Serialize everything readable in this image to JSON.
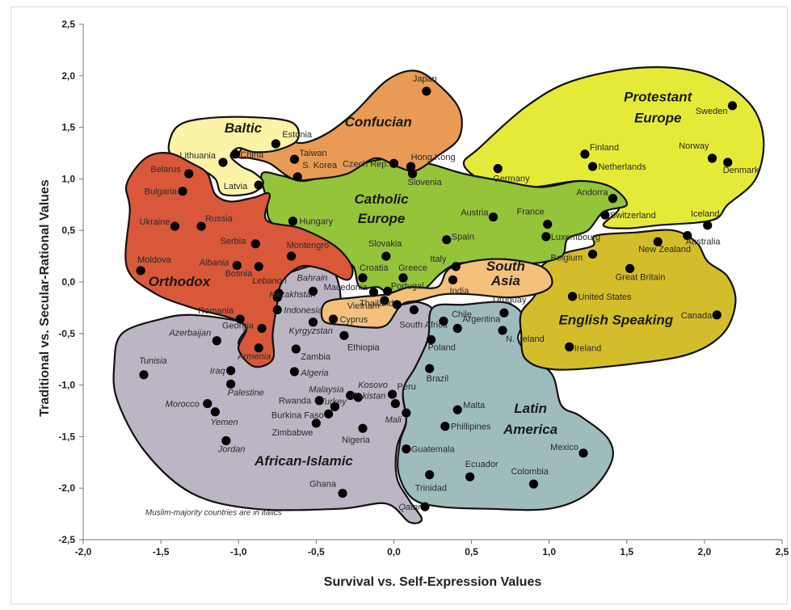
{
  "chart_data": {
    "type": "scatter",
    "xlabel": "Survival vs. Self-Expression Values",
    "ylabel": "Traditional vs. Secular-Rational Values",
    "xlim": [
      -2.0,
      2.5
    ],
    "ylim": [
      -2.5,
      2.5
    ],
    "x_ticks": [
      "-2,0",
      "-1,5",
      "-1,0",
      "-0,5",
      "0,0",
      "0,5",
      "1,0",
      "1,5",
      "2,0",
      "2,5"
    ],
    "y_ticks": [
      "2,5",
      "2,0",
      "1,5",
      "1,0",
      "0,5",
      "0,0",
      "-0,5",
      "-1,0",
      "-1,5",
      "-2,0",
      "-2,5"
    ],
    "grid": false,
    "note": "Muslim-majority countries are in italics",
    "colors": {
      "orthodox": "#d9583a",
      "baltic": "#fbf3a6",
      "confucian": "#e99a55",
      "catholic_europe": "#94c43a",
      "protestant_europe": "#e5ea38",
      "english_speaking": "#d3bd2b",
      "south_asia": "#f4c07c",
      "african_islamic": "#bcb5c4",
      "latin_america": "#9fbcbc"
    },
    "regions": [
      {
        "name": "Orthodox"
      },
      {
        "name": "Baltic"
      },
      {
        "name": "Confucian"
      },
      {
        "name": "Catholic\nEurope"
      },
      {
        "name": "Protestant\nEurope"
      },
      {
        "name": "English Speaking"
      },
      {
        "name": "South\nAsia"
      },
      {
        "name": "African-Islamic"
      },
      {
        "name": "Latin\nAmerica"
      }
    ],
    "points": [
      {
        "name": "Japan",
        "x": 0.21,
        "y": 1.85,
        "italic": false
      },
      {
        "name": "Sweden",
        "x": 2.18,
        "y": 1.71,
        "italic": false
      },
      {
        "name": "Estonia",
        "x": -0.76,
        "y": 1.34,
        "italic": false
      },
      {
        "name": "Lithuania",
        "x": -1.1,
        "y": 1.16,
        "italic": false
      },
      {
        "name": "China",
        "x": -1.02,
        "y": 1.24,
        "italic": false
      },
      {
        "name": "Taiwan",
        "x": -0.64,
        "y": 1.19,
        "italic": false
      },
      {
        "name": "S. Korea",
        "x": -0.62,
        "y": 1.02,
        "italic": false
      },
      {
        "name": "Hong Kong",
        "x": 0.11,
        "y": 1.12,
        "italic": false
      },
      {
        "name": "Czech Rep.",
        "x": 0.0,
        "y": 1.15,
        "italic": false
      },
      {
        "name": "Slovenia",
        "x": 0.12,
        "y": 1.05,
        "italic": false
      },
      {
        "name": "Finland",
        "x": 1.23,
        "y": 1.24,
        "italic": false
      },
      {
        "name": "Netherlands",
        "x": 1.28,
        "y": 1.12,
        "italic": false
      },
      {
        "name": "Norway",
        "x": 2.05,
        "y": 1.2,
        "italic": false
      },
      {
        "name": "Denmark",
        "x": 2.15,
        "y": 1.16,
        "italic": false
      },
      {
        "name": "Germany",
        "x": 0.67,
        "y": 1.1,
        "italic": false
      },
      {
        "name": "Belarus",
        "x": -1.32,
        "y": 1.05,
        "italic": false
      },
      {
        "name": "Bulgaria",
        "x": -1.36,
        "y": 0.88,
        "italic": false
      },
      {
        "name": "Latvia",
        "x": -0.87,
        "y": 0.94,
        "italic": false
      },
      {
        "name": "Andorra",
        "x": 1.41,
        "y": 0.81,
        "italic": false
      },
      {
        "name": "Hungary",
        "x": -0.65,
        "y": 0.59,
        "italic": false
      },
      {
        "name": "Ukraine",
        "x": -1.41,
        "y": 0.54,
        "italic": false
      },
      {
        "name": "Russia",
        "x": -1.24,
        "y": 0.54,
        "italic": false
      },
      {
        "name": "Austria",
        "x": 0.64,
        "y": 0.63,
        "italic": false
      },
      {
        "name": "France",
        "x": 0.99,
        "y": 0.56,
        "italic": false
      },
      {
        "name": "Switzerland",
        "x": 1.36,
        "y": 0.65,
        "italic": false
      },
      {
        "name": "Iceland",
        "x": 2.02,
        "y": 0.55,
        "italic": false
      },
      {
        "name": "Luxembourg",
        "x": 0.98,
        "y": 0.44,
        "italic": false
      },
      {
        "name": "Australia",
        "x": 1.89,
        "y": 0.45,
        "italic": false
      },
      {
        "name": "Spain",
        "x": 0.34,
        "y": 0.41,
        "italic": false
      },
      {
        "name": "Serbia",
        "x": -0.89,
        "y": 0.37,
        "italic": false
      },
      {
        "name": "Montengro",
        "x": -0.66,
        "y": 0.25,
        "italic": false
      },
      {
        "name": "Slovakia",
        "x": -0.05,
        "y": 0.25,
        "italic": false
      },
      {
        "name": "New Zealand",
        "x": 1.7,
        "y": 0.39,
        "italic": false
      },
      {
        "name": "Belgium",
        "x": 1.28,
        "y": 0.27,
        "italic": false
      },
      {
        "name": "Moldova",
        "x": -1.63,
        "y": 0.11,
        "italic": false
      },
      {
        "name": "Albania",
        "x": -1.01,
        "y": 0.16,
        "italic": true
      },
      {
        "name": "Bosnia",
        "x": -0.87,
        "y": 0.15,
        "italic": false
      },
      {
        "name": "Italy",
        "x": 0.4,
        "y": 0.15,
        "italic": false
      },
      {
        "name": "Great Britain",
        "x": 1.52,
        "y": 0.13,
        "italic": false
      },
      {
        "name": "Croatia",
        "x": -0.2,
        "y": 0.04,
        "italic": false
      },
      {
        "name": "Greece",
        "x": 0.06,
        "y": 0.04,
        "italic": false
      },
      {
        "name": "India",
        "x": 0.38,
        "y": 0.02,
        "italic": false
      },
      {
        "name": "Lebanon",
        "x": -0.74,
        "y": -0.11,
        "italic": true
      },
      {
        "name": "Bahrain",
        "x": -0.52,
        "y": -0.09,
        "italic": true
      },
      {
        "name": "Macedonia",
        "x": -0.13,
        "y": -0.1,
        "italic": false
      },
      {
        "name": "Portugal",
        "x": -0.04,
        "y": -0.09,
        "italic": false
      },
      {
        "name": "Kazakhstan",
        "x": -0.75,
        "y": -0.15,
        "italic": true
      },
      {
        "name": "Vietnam",
        "x": -0.06,
        "y": -0.18,
        "italic": false
      },
      {
        "name": "United States",
        "x": 1.15,
        "y": -0.14,
        "italic": false
      },
      {
        "name": "Indonesia",
        "x": -0.75,
        "y": -0.27,
        "italic": true
      },
      {
        "name": "Thailand",
        "x": 0.02,
        "y": -0.22,
        "italic": false
      },
      {
        "name": "South Africa",
        "x": 0.13,
        "y": -0.27,
        "italic": false
      },
      {
        "name": "Uruguay",
        "x": 0.71,
        "y": -0.3,
        "italic": false
      },
      {
        "name": "Canada",
        "x": 2.08,
        "y": -0.32,
        "italic": false
      },
      {
        "name": "Romania",
        "x": -0.99,
        "y": -0.36,
        "italic": false
      },
      {
        "name": "Cyprus",
        "x": -0.39,
        "y": -0.36,
        "italic": false
      },
      {
        "name": "Kyrgyzstan",
        "x": -0.52,
        "y": -0.39,
        "italic": true
      },
      {
        "name": "Chile",
        "x": 0.32,
        "y": -0.38,
        "italic": false
      },
      {
        "name": "Georgia",
        "x": -0.85,
        "y": -0.45,
        "italic": false
      },
      {
        "name": "Ethiopia",
        "x": -0.32,
        "y": -0.52,
        "italic": false
      },
      {
        "name": "Argentina",
        "x": 0.41,
        "y": -0.45,
        "italic": false
      },
      {
        "name": "N. Ireland",
        "x": 0.7,
        "y": -0.47,
        "italic": false
      },
      {
        "name": "Azerbaijan",
        "x": -1.14,
        "y": -0.57,
        "italic": true
      },
      {
        "name": "Poland",
        "x": 0.24,
        "y": -0.56,
        "italic": false
      },
      {
        "name": "Armenia",
        "x": -0.87,
        "y": -0.64,
        "italic": true
      },
      {
        "name": "Zambia",
        "x": -0.63,
        "y": -0.65,
        "italic": false
      },
      {
        "name": "Ireland",
        "x": 1.13,
        "y": -0.63,
        "italic": false
      },
      {
        "name": "Iraq",
        "x": -1.05,
        "y": -0.86,
        "italic": true
      },
      {
        "name": "Algeria",
        "x": -0.64,
        "y": -0.87,
        "italic": true
      },
      {
        "name": "Brazil",
        "x": 0.23,
        "y": -0.84,
        "italic": false
      },
      {
        "name": "Tunisia",
        "x": -1.61,
        "y": -0.9,
        "italic": true
      },
      {
        "name": "Palestine",
        "x": -1.05,
        "y": -0.99,
        "italic": true
      },
      {
        "name": "Kosovo",
        "x": -0.23,
        "y": -1.12,
        "italic": true
      },
      {
        "name": "Peru",
        "x": -0.01,
        "y": -1.09,
        "italic": false
      },
      {
        "name": "Malaysia",
        "x": -0.28,
        "y": -1.1,
        "italic": true
      },
      {
        "name": "Rwanda",
        "x": -0.48,
        "y": -1.15,
        "italic": false
      },
      {
        "name": "Morocco",
        "x": -1.2,
        "y": -1.18,
        "italic": true
      },
      {
        "name": "Pakistan",
        "x": 0.01,
        "y": -1.18,
        "italic": true
      },
      {
        "name": "Turkey",
        "x": -0.38,
        "y": -1.21,
        "italic": true
      },
      {
        "name": "Yemen",
        "x": -1.15,
        "y": -1.26,
        "italic": true
      },
      {
        "name": "Malta",
        "x": 0.41,
        "y": -1.24,
        "italic": false
      },
      {
        "name": "Burkina Faso",
        "x": -0.42,
        "y": -1.28,
        "italic": false
      },
      {
        "name": "Mali",
        "x": 0.08,
        "y": -1.27,
        "italic": true
      },
      {
        "name": "Phillipines",
        "x": 0.33,
        "y": -1.4,
        "italic": false
      },
      {
        "name": "Zimbabwe",
        "x": -0.5,
        "y": -1.37,
        "italic": false
      },
      {
        "name": "Nigeria",
        "x": -0.2,
        "y": -1.42,
        "italic": false
      },
      {
        "name": "Jordan",
        "x": -1.08,
        "y": -1.54,
        "italic": true
      },
      {
        "name": "Guatemala",
        "x": 0.08,
        "y": -1.62,
        "italic": false
      },
      {
        "name": "Mexico",
        "x": 1.22,
        "y": -1.66,
        "italic": false
      },
      {
        "name": "Trinidad",
        "x": 0.23,
        "y": -1.87,
        "italic": false
      },
      {
        "name": "Ecuador",
        "x": 0.49,
        "y": -1.89,
        "italic": false
      },
      {
        "name": "Colombia",
        "x": 0.9,
        "y": -1.96,
        "italic": false
      },
      {
        "name": "Ghana",
        "x": -0.33,
        "y": -2.05,
        "italic": false
      },
      {
        "name": "Qatar",
        "x": 0.2,
        "y": -2.18,
        "italic": true
      }
    ]
  }
}
